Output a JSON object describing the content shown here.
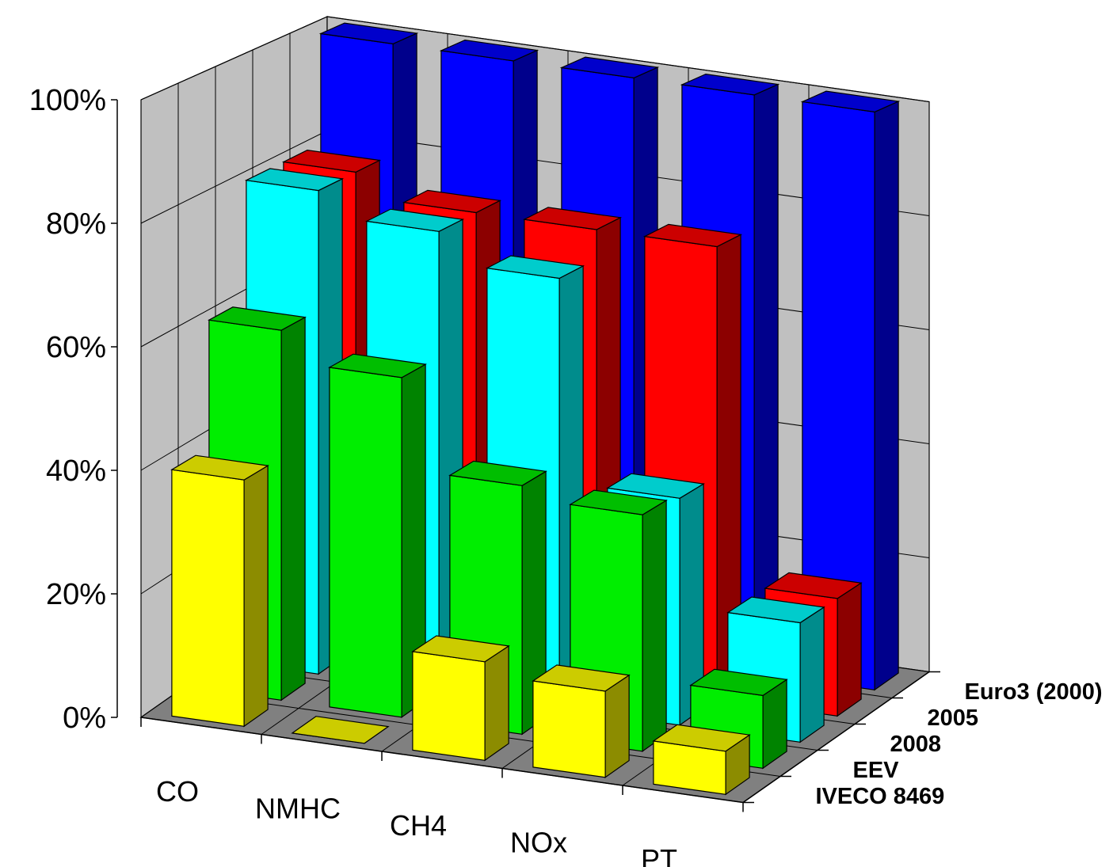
{
  "chart_data": {
    "type": "bar",
    "subtype": "3d-column",
    "categories": [
      "CO",
      "NMHC",
      "CH4",
      "NOx",
      "PT"
    ],
    "series": [
      {
        "name": "IVECO 8469",
        "color": "#ffff00",
        "values": [
          40,
          0,
          16,
          14,
          7
        ]
      },
      {
        "name": "EEV",
        "color": "#00ee00",
        "values": [
          61,
          56,
          41,
          39,
          12
        ]
      },
      {
        "name": "2008",
        "color": "#00ffff",
        "values": [
          81,
          77,
          72,
          38,
          20
        ]
      },
      {
        "name": "2005",
        "color": "#ff0000",
        "values": [
          81,
          77,
          77,
          77,
          20
        ]
      },
      {
        "name": "Euro3 (2000)",
        "color": "#0000ff",
        "values": [
          100,
          100,
          100,
          100,
          100
        ]
      }
    ],
    "y_ticks": [
      "0%",
      "20%",
      "40%",
      "60%",
      "80%",
      "100%"
    ],
    "ylim": [
      0,
      100
    ],
    "grid": true,
    "wall_color": "#c0c0c0",
    "floor_color": "#808080"
  }
}
